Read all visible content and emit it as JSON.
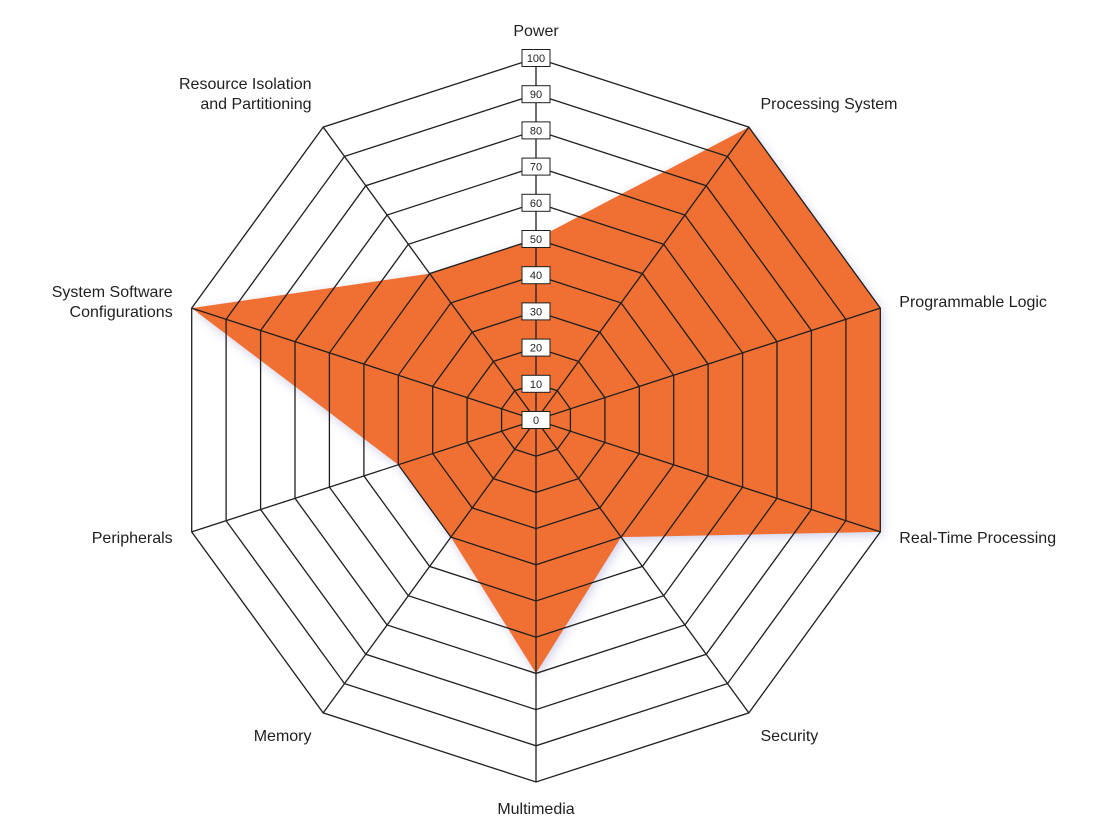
{
  "chart_data": {
    "type": "radar",
    "title": "",
    "axes": [
      "Power",
      "Processing System",
      "Programmable Logic",
      "Real-Time Processing",
      "Security",
      "Multimedia",
      "Memory",
      "Peripherals",
      "System Software Configurations",
      "Resource Isolation and Partitioning"
    ],
    "axis_label_lines": [
      [
        "Power"
      ],
      [
        "Processing System"
      ],
      [
        "Programmable Logic"
      ],
      [
        "Real-Time Processing"
      ],
      [
        "Security"
      ],
      [
        "Multimedia"
      ],
      [
        "Memory"
      ],
      [
        "Peripherals"
      ],
      [
        "System Software",
        "Configurations"
      ],
      [
        "Resource Isolation",
        "and Partitioning"
      ]
    ],
    "series": [
      {
        "values": [
          50,
          100,
          100,
          100,
          40,
          70,
          40,
          40,
          100,
          50
        ]
      }
    ],
    "range": [
      0,
      100
    ],
    "ticks": [
      "0",
      "10",
      "20",
      "30",
      "40",
      "50",
      "60",
      "70",
      "80",
      "90",
      "100"
    ],
    "grid": true,
    "legend": "none"
  },
  "colors": {
    "fill": "#f07034",
    "grid": "#1f1f1f",
    "background": "#ffffff",
    "shadow": "#c9cbe8"
  }
}
